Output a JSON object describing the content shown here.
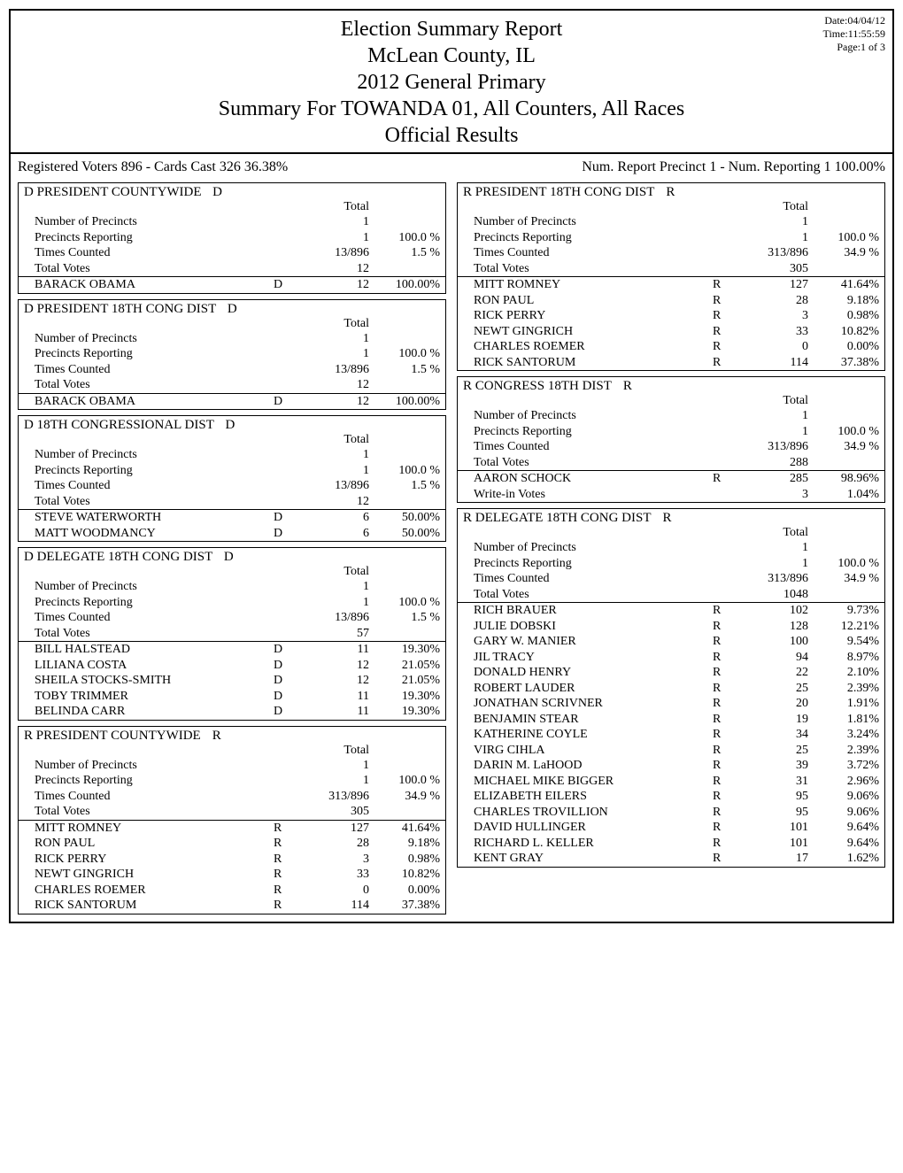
{
  "header": {
    "title1": "Election Summary Report",
    "title2": "McLean County, IL",
    "title3": "2012 General Primary",
    "title4": "Summary For TOWANDA 01, All Counters, All Races",
    "title5": "Official Results",
    "date": "Date:04/04/12",
    "time": "Time:11:55:59",
    "page": "Page:1 of 3"
  },
  "reg_left": "Registered Voters 896 - Cards Cast 326   36.38%",
  "reg_right": "Num. Report Precinct 1 - Num. Reporting 1   100.00%",
  "label_total": "Total",
  "left": [
    {
      "title": "D PRESIDENT COUNTYWIDE",
      "party": "D",
      "rows": [
        {
          "name": "Number of Precincts",
          "num": "1",
          "pct": ""
        },
        {
          "name": "Precincts Reporting",
          "num": "1",
          "pct": "100.0 %"
        },
        {
          "name": "Times Counted",
          "num": "13/896",
          "pct": "1.5 %"
        },
        {
          "name": "Total Votes",
          "num": "12",
          "pct": ""
        }
      ],
      "cands": [
        {
          "name": "BARACK OBAMA",
          "party": "D",
          "num": "12",
          "pct": "100.00%"
        }
      ]
    },
    {
      "title": "D PRESIDENT 18TH CONG DIST",
      "party": "D",
      "rows": [
        {
          "name": "Number of Precincts",
          "num": "1",
          "pct": ""
        },
        {
          "name": "Precincts Reporting",
          "num": "1",
          "pct": "100.0 %"
        },
        {
          "name": "Times Counted",
          "num": "13/896",
          "pct": "1.5 %"
        },
        {
          "name": "Total Votes",
          "num": "12",
          "pct": ""
        }
      ],
      "cands": [
        {
          "name": "BARACK OBAMA",
          "party": "D",
          "num": "12",
          "pct": "100.00%"
        }
      ]
    },
    {
      "title": "D 18TH CONGRESSIONAL DIST",
      "party": "D",
      "rows": [
        {
          "name": "Number of Precincts",
          "num": "1",
          "pct": ""
        },
        {
          "name": "Precincts Reporting",
          "num": "1",
          "pct": "100.0 %"
        },
        {
          "name": "Times Counted",
          "num": "13/896",
          "pct": "1.5 %"
        },
        {
          "name": "Total Votes",
          "num": "12",
          "pct": ""
        }
      ],
      "cands": [
        {
          "name": "STEVE WATERWORTH",
          "party": "D",
          "num": "6",
          "pct": "50.00%"
        },
        {
          "name": "MATT WOODMANCY",
          "party": "D",
          "num": "6",
          "pct": "50.00%"
        }
      ]
    },
    {
      "title": "D DELEGATE 18TH CONG DIST",
      "party": "D",
      "rows": [
        {
          "name": "Number of Precincts",
          "num": "1",
          "pct": ""
        },
        {
          "name": "Precincts Reporting",
          "num": "1",
          "pct": "100.0 %"
        },
        {
          "name": "Times Counted",
          "num": "13/896",
          "pct": "1.5 %"
        },
        {
          "name": "Total Votes",
          "num": "57",
          "pct": ""
        }
      ],
      "cands": [
        {
          "name": "BILL HALSTEAD",
          "party": "D",
          "num": "11",
          "pct": "19.30%"
        },
        {
          "name": "LILIANA COSTA",
          "party": "D",
          "num": "12",
          "pct": "21.05%"
        },
        {
          "name": "SHEILA STOCKS-SMITH",
          "party": "D",
          "num": "12",
          "pct": "21.05%"
        },
        {
          "name": "TOBY TRIMMER",
          "party": "D",
          "num": "11",
          "pct": "19.30%"
        },
        {
          "name": "BELINDA CARR",
          "party": "D",
          "num": "11",
          "pct": "19.30%"
        }
      ]
    },
    {
      "title": "R PRESIDENT COUNTYWIDE",
      "party": "R",
      "rows": [
        {
          "name": "Number of Precincts",
          "num": "1",
          "pct": ""
        },
        {
          "name": "Precincts Reporting",
          "num": "1",
          "pct": "100.0 %"
        },
        {
          "name": "Times Counted",
          "num": "313/896",
          "pct": "34.9 %"
        },
        {
          "name": "Total Votes",
          "num": "305",
          "pct": ""
        }
      ],
      "cands": [
        {
          "name": "MITT ROMNEY",
          "party": "R",
          "num": "127",
          "pct": "41.64%"
        },
        {
          "name": "RON PAUL",
          "party": "R",
          "num": "28",
          "pct": "9.18%"
        },
        {
          "name": "RICK PERRY",
          "party": "R",
          "num": "3",
          "pct": "0.98%"
        },
        {
          "name": "NEWT GINGRICH",
          "party": "R",
          "num": "33",
          "pct": "10.82%"
        },
        {
          "name": "CHARLES ROEMER",
          "party": "R",
          "num": "0",
          "pct": "0.00%"
        },
        {
          "name": "RICK SANTORUM",
          "party": "R",
          "num": "114",
          "pct": "37.38%"
        }
      ]
    }
  ],
  "right": [
    {
      "title": "R PRESIDENT 18TH CONG DIST",
      "party": "R",
      "rows": [
        {
          "name": "Number of Precincts",
          "num": "1",
          "pct": ""
        },
        {
          "name": "Precincts Reporting",
          "num": "1",
          "pct": "100.0 %"
        },
        {
          "name": "Times Counted",
          "num": "313/896",
          "pct": "34.9 %"
        },
        {
          "name": "Total Votes",
          "num": "305",
          "pct": ""
        }
      ],
      "cands": [
        {
          "name": "MITT ROMNEY",
          "party": "R",
          "num": "127",
          "pct": "41.64%"
        },
        {
          "name": "RON PAUL",
          "party": "R",
          "num": "28",
          "pct": "9.18%"
        },
        {
          "name": "RICK PERRY",
          "party": "R",
          "num": "3",
          "pct": "0.98%"
        },
        {
          "name": "NEWT GINGRICH",
          "party": "R",
          "num": "33",
          "pct": "10.82%"
        },
        {
          "name": "CHARLES ROEMER",
          "party": "R",
          "num": "0",
          "pct": "0.00%"
        },
        {
          "name": "RICK SANTORUM",
          "party": "R",
          "num": "114",
          "pct": "37.38%"
        }
      ]
    },
    {
      "title": "R CONGRESS 18TH DIST",
      "party": "R",
      "rows": [
        {
          "name": "Number of Precincts",
          "num": "1",
          "pct": ""
        },
        {
          "name": "Precincts Reporting",
          "num": "1",
          "pct": "100.0 %"
        },
        {
          "name": "Times Counted",
          "num": "313/896",
          "pct": "34.9 %"
        },
        {
          "name": "Total Votes",
          "num": "288",
          "pct": ""
        }
      ],
      "cands": [
        {
          "name": "AARON SCHOCK",
          "party": "R",
          "num": "285",
          "pct": "98.96%"
        },
        {
          "name": "Write-in Votes",
          "party": "",
          "num": "3",
          "pct": "1.04%"
        }
      ]
    },
    {
      "title": "R DELEGATE 18TH CONG DIST",
      "party": "R",
      "rows": [
        {
          "name": "Number of Precincts",
          "num": "1",
          "pct": ""
        },
        {
          "name": "Precincts Reporting",
          "num": "1",
          "pct": "100.0 %"
        },
        {
          "name": "Times Counted",
          "num": "313/896",
          "pct": "34.9 %"
        },
        {
          "name": "Total Votes",
          "num": "1048",
          "pct": ""
        }
      ],
      "cands": [
        {
          "name": "RICH BRAUER",
          "party": "R",
          "num": "102",
          "pct": "9.73%"
        },
        {
          "name": "JULIE DOBSKI",
          "party": "R",
          "num": "128",
          "pct": "12.21%"
        },
        {
          "name": "GARY W. MANIER",
          "party": "R",
          "num": "100",
          "pct": "9.54%"
        },
        {
          "name": "JIL TRACY",
          "party": "R",
          "num": "94",
          "pct": "8.97%"
        },
        {
          "name": "DONALD HENRY",
          "party": "R",
          "num": "22",
          "pct": "2.10%"
        },
        {
          "name": "ROBERT LAUDER",
          "party": "R",
          "num": "25",
          "pct": "2.39%"
        },
        {
          "name": "JONATHAN SCRIVNER",
          "party": "R",
          "num": "20",
          "pct": "1.91%"
        },
        {
          "name": "BENJAMIN STEAR",
          "party": "R",
          "num": "19",
          "pct": "1.81%"
        },
        {
          "name": "KATHERINE COYLE",
          "party": "R",
          "num": "34",
          "pct": "3.24%"
        },
        {
          "name": "VIRG CIHLA",
          "party": "R",
          "num": "25",
          "pct": "2.39%"
        },
        {
          "name": "DARIN M. LaHOOD",
          "party": "R",
          "num": "39",
          "pct": "3.72%"
        },
        {
          "name": "MICHAEL MIKE BIGGER",
          "party": "R",
          "num": "31",
          "pct": "2.96%"
        },
        {
          "name": "ELIZABETH EILERS",
          "party": "R",
          "num": "95",
          "pct": "9.06%"
        },
        {
          "name": "CHARLES TROVILLION",
          "party": "R",
          "num": "95",
          "pct": "9.06%"
        },
        {
          "name": "DAVID HULLINGER",
          "party": "R",
          "num": "101",
          "pct": "9.64%"
        },
        {
          "name": "RICHARD L. KELLER",
          "party": "R",
          "num": "101",
          "pct": "9.64%"
        },
        {
          "name": "KENT GRAY",
          "party": "R",
          "num": "17",
          "pct": "1.62%"
        }
      ]
    }
  ]
}
